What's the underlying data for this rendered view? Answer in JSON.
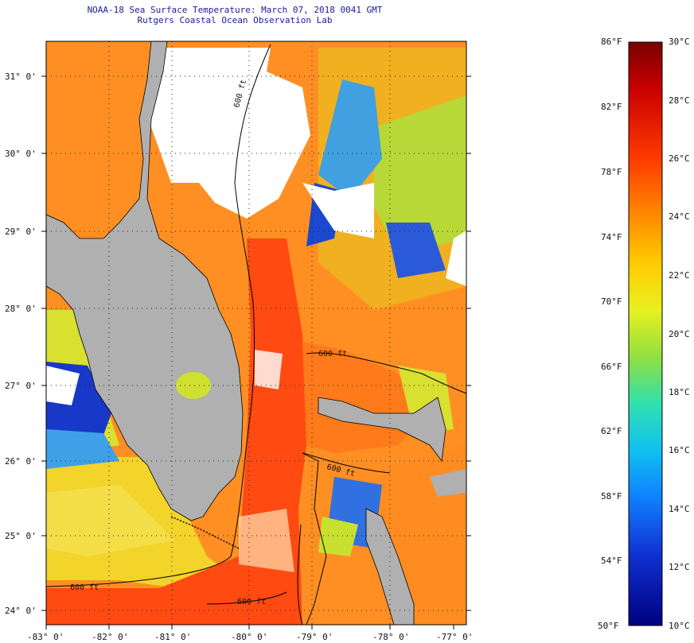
{
  "title_line1": "NOAA-18 Sea Surface Temperature:  March 07, 2018 0041 GMT",
  "title_line2": "Rutgers Coastal Ocean Observation Lab",
  "lat_labels": [
    "31° 0'",
    "30° 0'",
    "29° 0'",
    "28° 0'",
    "27° 0'",
    "26° 0'",
    "25° 0'",
    "24° 0'"
  ],
  "lon_labels": [
    "-83° 0'",
    "-82° 0'",
    "-81° 0'",
    "-80° 0'",
    "-79° 0'",
    "-78° 0'",
    "-77° 0'"
  ],
  "contour_labels": [
    "600 ft",
    "600 ft",
    "600 ft",
    "600 ft",
    "600 ft"
  ],
  "colorbar": {
    "fahrenheit": [
      "86°F",
      "82°F",
      "78°F",
      "74°F",
      "70°F",
      "66°F",
      "62°F",
      "58°F",
      "54°F",
      "50°F"
    ],
    "celsius": [
      "30°C",
      "28°C",
      "26°C",
      "24°C",
      "22°C",
      "20°C",
      "18°C",
      "16°C",
      "14°C",
      "12°C",
      "10°C"
    ]
  },
  "colors": {
    "land": "#b0b0b0",
    "cloud": "#ffffff",
    "warm_water": "#ff4a10",
    "mid_water": "#ff9a20",
    "cool_water": "#e8e020",
    "cold_water": "#1030c0"
  }
}
